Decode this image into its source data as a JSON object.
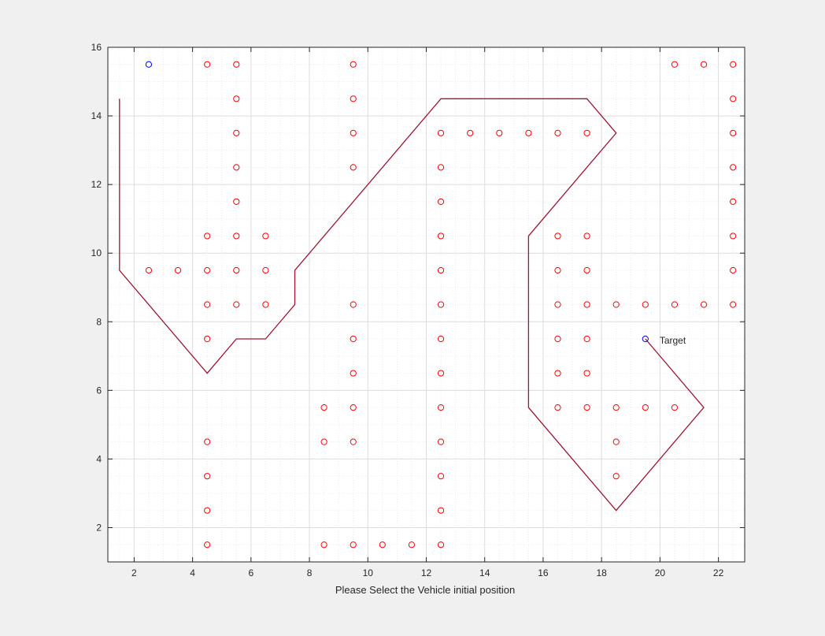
{
  "figure": {
    "background": "#f0f0f0",
    "axes_background": "#ffffff"
  },
  "chart_data": {
    "type": "scatter",
    "title": "",
    "xlabel": "Please Select the Vehicle initial position",
    "ylabel": "",
    "xlim": [
      1.1,
      22.9
    ],
    "ylim": [
      1.0,
      16.0
    ],
    "xticks": [
      2,
      4,
      6,
      8,
      10,
      12,
      14,
      16,
      18,
      20,
      22
    ],
    "yticks": [
      2,
      4,
      6,
      8,
      10,
      12,
      14,
      16
    ],
    "grid": true,
    "minor_grid": true,
    "series": [
      {
        "marker": "circle-open",
        "color": "#ff0000",
        "points": [
          [
            4.5,
            15.5
          ],
          [
            5.5,
            15.5
          ],
          [
            9.5,
            15.5
          ],
          [
            20.5,
            15.5
          ],
          [
            21.5,
            15.5
          ],
          [
            22.5,
            15.5
          ],
          [
            5.5,
            14.5
          ],
          [
            9.5,
            14.5
          ],
          [
            22.5,
            14.5
          ],
          [
            5.5,
            13.5
          ],
          [
            9.5,
            13.5
          ],
          [
            12.5,
            13.5
          ],
          [
            13.5,
            13.5
          ],
          [
            14.5,
            13.5
          ],
          [
            15.5,
            13.5
          ],
          [
            16.5,
            13.5
          ],
          [
            17.5,
            13.5
          ],
          [
            22.5,
            13.5
          ],
          [
            5.5,
            12.5
          ],
          [
            9.5,
            12.5
          ],
          [
            12.5,
            12.5
          ],
          [
            22.5,
            12.5
          ],
          [
            5.5,
            11.5
          ],
          [
            12.5,
            11.5
          ],
          [
            22.5,
            11.5
          ],
          [
            4.5,
            10.5
          ],
          [
            5.5,
            10.5
          ],
          [
            6.5,
            10.5
          ],
          [
            12.5,
            10.5
          ],
          [
            16.5,
            10.5
          ],
          [
            17.5,
            10.5
          ],
          [
            22.5,
            10.5
          ],
          [
            2.5,
            9.5
          ],
          [
            3.5,
            9.5
          ],
          [
            4.5,
            9.5
          ],
          [
            5.5,
            9.5
          ],
          [
            6.5,
            9.5
          ],
          [
            12.5,
            9.5
          ],
          [
            16.5,
            9.5
          ],
          [
            17.5,
            9.5
          ],
          [
            22.5,
            9.5
          ],
          [
            4.5,
            8.5
          ],
          [
            5.5,
            8.5
          ],
          [
            6.5,
            8.5
          ],
          [
            9.5,
            8.5
          ],
          [
            12.5,
            8.5
          ],
          [
            16.5,
            8.5
          ],
          [
            17.5,
            8.5
          ],
          [
            18.5,
            8.5
          ],
          [
            19.5,
            8.5
          ],
          [
            20.5,
            8.5
          ],
          [
            21.5,
            8.5
          ],
          [
            22.5,
            8.5
          ],
          [
            4.5,
            7.5
          ],
          [
            9.5,
            7.5
          ],
          [
            12.5,
            7.5
          ],
          [
            16.5,
            7.5
          ],
          [
            17.5,
            7.5
          ],
          [
            9.5,
            6.5
          ],
          [
            12.5,
            6.5
          ],
          [
            16.5,
            6.5
          ],
          [
            17.5,
            6.5
          ],
          [
            8.5,
            5.5
          ],
          [
            9.5,
            5.5
          ],
          [
            12.5,
            5.5
          ],
          [
            16.5,
            5.5
          ],
          [
            17.5,
            5.5
          ],
          [
            18.5,
            5.5
          ],
          [
            19.5,
            5.5
          ],
          [
            20.5,
            5.5
          ],
          [
            4.5,
            4.5
          ],
          [
            8.5,
            4.5
          ],
          [
            9.5,
            4.5
          ],
          [
            12.5,
            4.5
          ],
          [
            18.5,
            4.5
          ],
          [
            4.5,
            3.5
          ],
          [
            12.5,
            3.5
          ],
          [
            18.5,
            3.5
          ],
          [
            4.5,
            2.5
          ],
          [
            12.5,
            2.5
          ],
          [
            4.5,
            1.5
          ],
          [
            8.5,
            1.5
          ],
          [
            9.5,
            1.5
          ],
          [
            10.5,
            1.5
          ],
          [
            11.5,
            1.5
          ],
          [
            12.5,
            1.5
          ]
        ]
      },
      {
        "marker": "circle-open",
        "color": "#0000ff",
        "points": [
          [
            2.5,
            15.5
          ],
          [
            19.5,
            7.5
          ]
        ]
      },
      {
        "type": "line",
        "color": "#a2142f",
        "points": [
          [
            1.5,
            14.5
          ],
          [
            1.5,
            9.5
          ],
          [
            4.5,
            6.5
          ],
          [
            5.5,
            7.5
          ],
          [
            6.5,
            7.5
          ],
          [
            7.5,
            8.5
          ],
          [
            7.5,
            9.5
          ],
          [
            12.5,
            14.5
          ],
          [
            17.5,
            14.5
          ],
          [
            18.5,
            13.5
          ],
          [
            15.5,
            10.5
          ],
          [
            15.5,
            5.5
          ],
          [
            18.5,
            2.5
          ],
          [
            21.5,
            5.5
          ],
          [
            19.5,
            7.5
          ]
        ]
      }
    ],
    "annotations": [
      {
        "text": "Target",
        "x": 19.5,
        "y": 7.5
      }
    ]
  }
}
